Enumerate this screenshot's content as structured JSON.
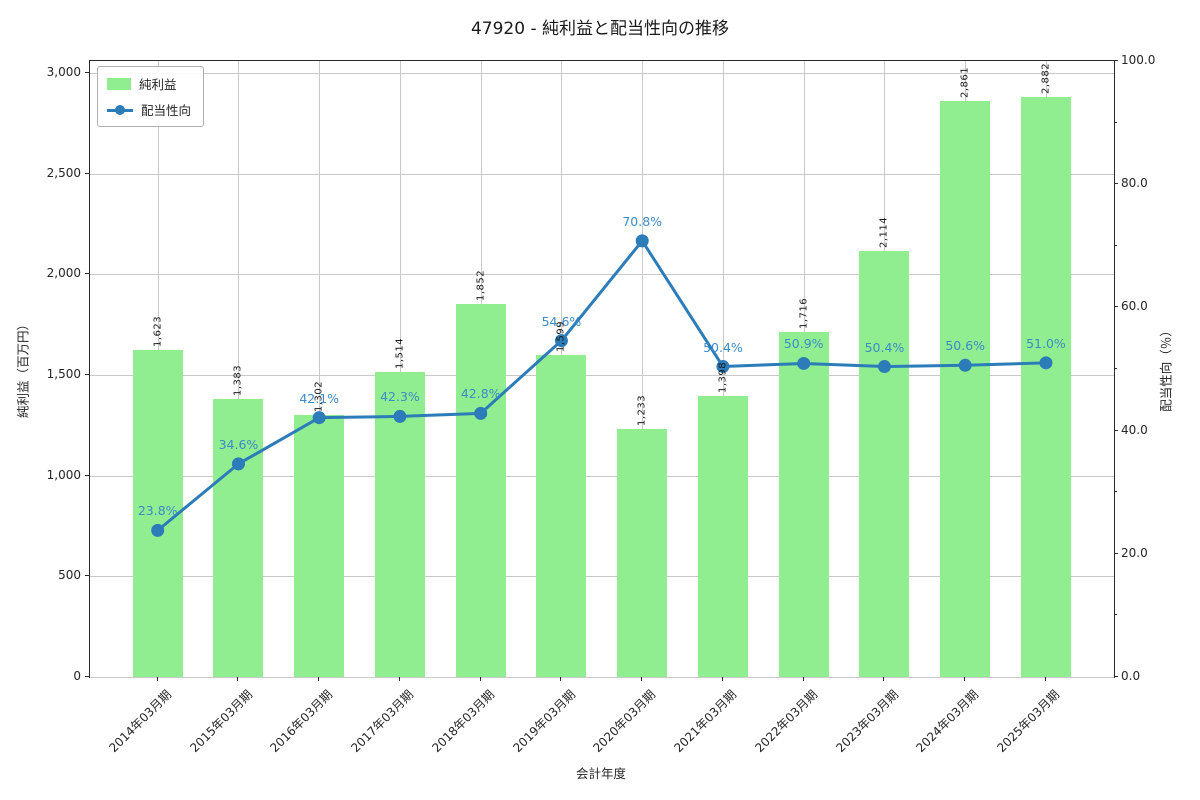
{
  "chart_data": {
    "type": "combo",
    "title": "47920 - 純利益と配当性向の推移",
    "xlabel": "会計年度",
    "ylabel_left": "純利益（百万円）",
    "ylabel_right": "配当性向（％）",
    "categories": [
      "2014年03月期",
      "2015年03月期",
      "2016年03月期",
      "2017年03月期",
      "2018年03月期",
      "2019年03月期",
      "2020年03月期",
      "2021年03月期",
      "2022年03月期",
      "2023年03月期",
      "2024年03月期",
      "2025年03月期"
    ],
    "series": [
      {
        "name": "純利益",
        "type": "bar",
        "axis": "left",
        "color": "#90ee90",
        "values": [
          1623,
          1383,
          1302,
          1514,
          1852,
          1599,
          1233,
          1398,
          1716,
          2114,
          2861,
          2882
        ],
        "labels": [
          "1,623",
          "1,383",
          "1,302",
          "1,514",
          "1,852",
          "1,599",
          "1,233",
          "1,398",
          "1,716",
          "2,114",
          "2,861",
          "2,882"
        ]
      },
      {
        "name": "配当性向",
        "type": "line",
        "axis": "right",
        "color": "#2b7cb8",
        "values": [
          23.8,
          34.6,
          42.1,
          42.3,
          42.8,
          54.6,
          70.8,
          50.4,
          50.9,
          50.4,
          50.6,
          51.0
        ],
        "labels": [
          "23.8%",
          "34.6%",
          "42.1%",
          "42.3%",
          "42.8%",
          "54.6%",
          "70.8%",
          "50.4%",
          "50.9%",
          "50.4%",
          "50.6%",
          "51.0%"
        ]
      }
    ],
    "ylim_left": [
      0,
      3060
    ],
    "ylim_right": [
      0,
      100
    ],
    "yticks_left": [
      0,
      500,
      1000,
      1500,
      2000,
      2500,
      3000
    ],
    "ytick_labels_left": [
      "0",
      "500",
      "1,000",
      "1,500",
      "2,000",
      "2,500",
      "3,000"
    ],
    "yticks_right": [
      0,
      20,
      40,
      60,
      80,
      100
    ],
    "ytick_labels_right": [
      "0.0",
      "20.0",
      "40.0",
      "60.0",
      "80.0",
      "100.0"
    ],
    "yticks_right_minor": [
      10,
      30,
      50,
      70,
      90
    ],
    "grid": true,
    "legend_position": "upper left"
  },
  "legend": {
    "bar_label": "純利益",
    "line_label": "配当性向"
  },
  "colors": {
    "bar": "#90ee90",
    "line": "#2b7cb8",
    "pct_label": "#3d8bc8",
    "grid": "#c9c9c9",
    "spine": "#2a2a2a",
    "text": "#262626"
  }
}
